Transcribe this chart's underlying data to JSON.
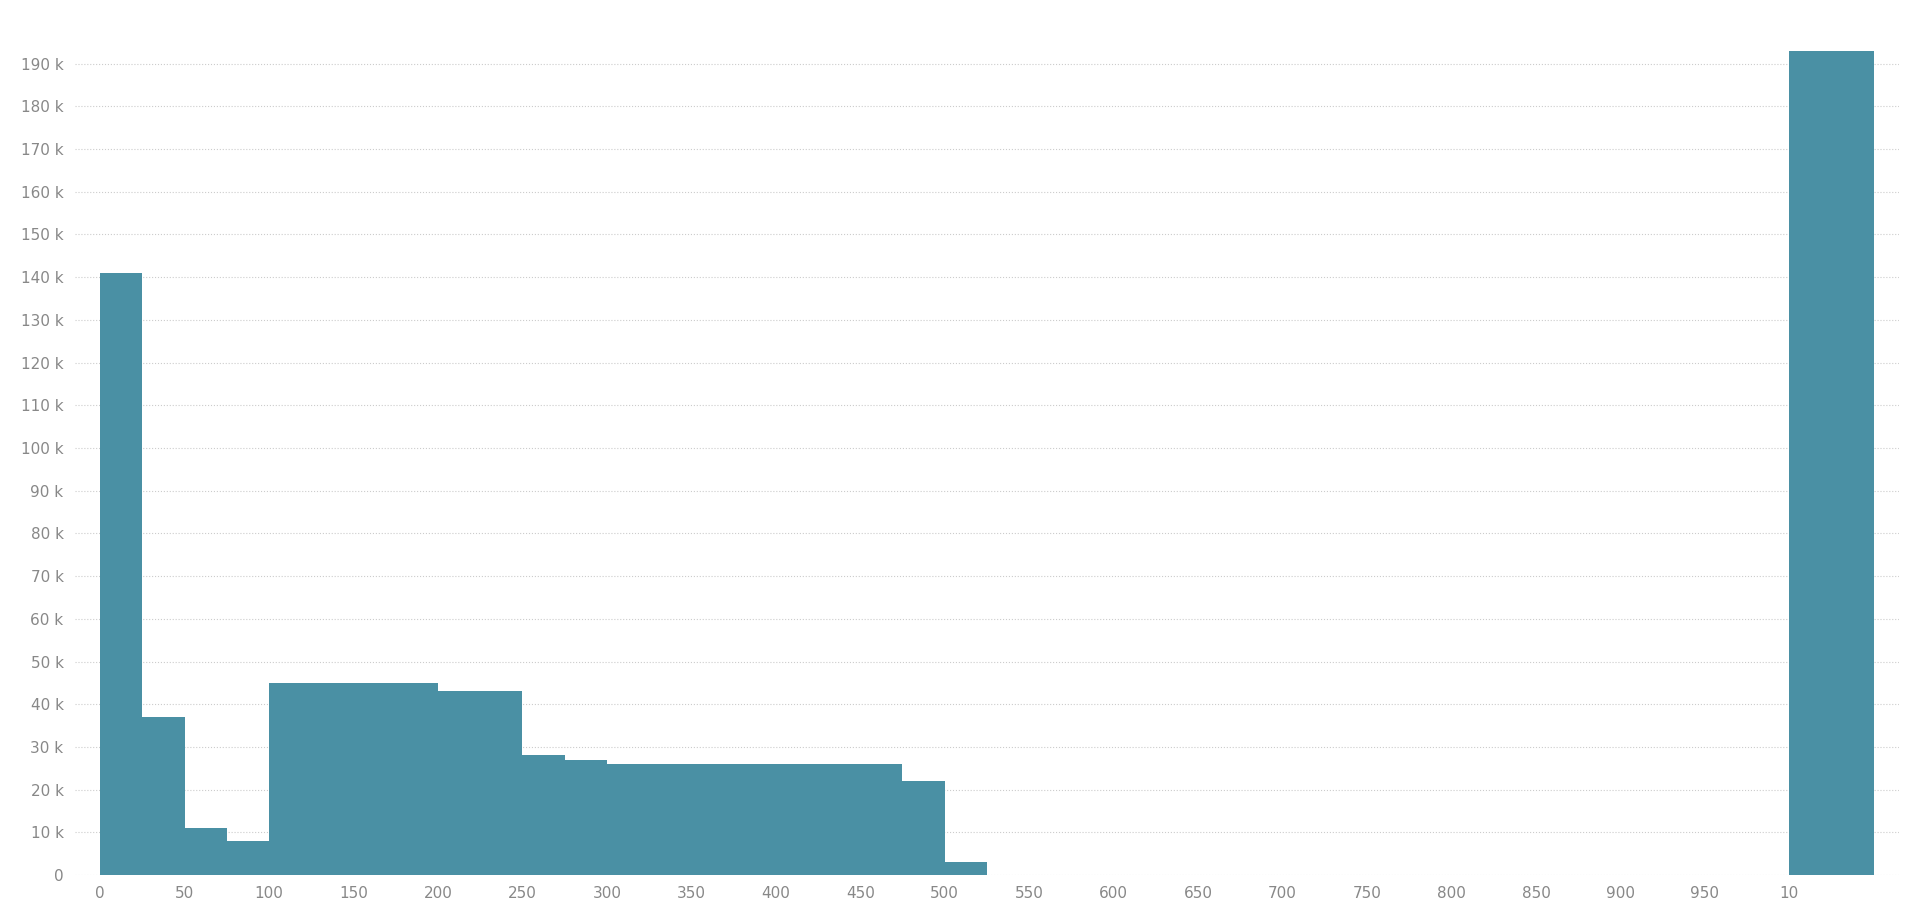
{
  "background_color": "#ffffff",
  "bar_color": "#4a90a4",
  "bar_heights": [
    141000,
    37000,
    11000,
    8000,
    45000,
    45000,
    45000,
    43000,
    28000,
    27000,
    26000,
    26000,
    26000,
    26000,
    22000,
    3000,
    193000
  ],
  "ytick_labels": [
    "0",
    "10 k",
    "20 k",
    "30 k",
    "40 k",
    "50 k",
    "60 k",
    "70 k",
    "80 k",
    "90 k",
    "100 k",
    "110 k",
    "120 k",
    "130 k",
    "140 k",
    "150 k",
    "160 k",
    "170 k",
    "180 k",
    "190 k"
  ],
  "ytick_values": [
    0,
    10000,
    20000,
    30000,
    40000,
    50000,
    60000,
    70000,
    80000,
    90000,
    100000,
    110000,
    120000,
    130000,
    140000,
    150000,
    160000,
    170000,
    180000,
    190000
  ],
  "xtick_labels": [
    "0",
    "50",
    "100",
    "150",
    "200",
    "250",
    "300",
    "350",
    "400",
    "450",
    "500",
    "550",
    "600",
    "650",
    "700",
    "750",
    "800",
    "850",
    "900",
    "950",
    "10"
  ],
  "grid_color": "#cccccc",
  "ylim": [
    0,
    200000
  ],
  "n_display_ticks": 21
}
